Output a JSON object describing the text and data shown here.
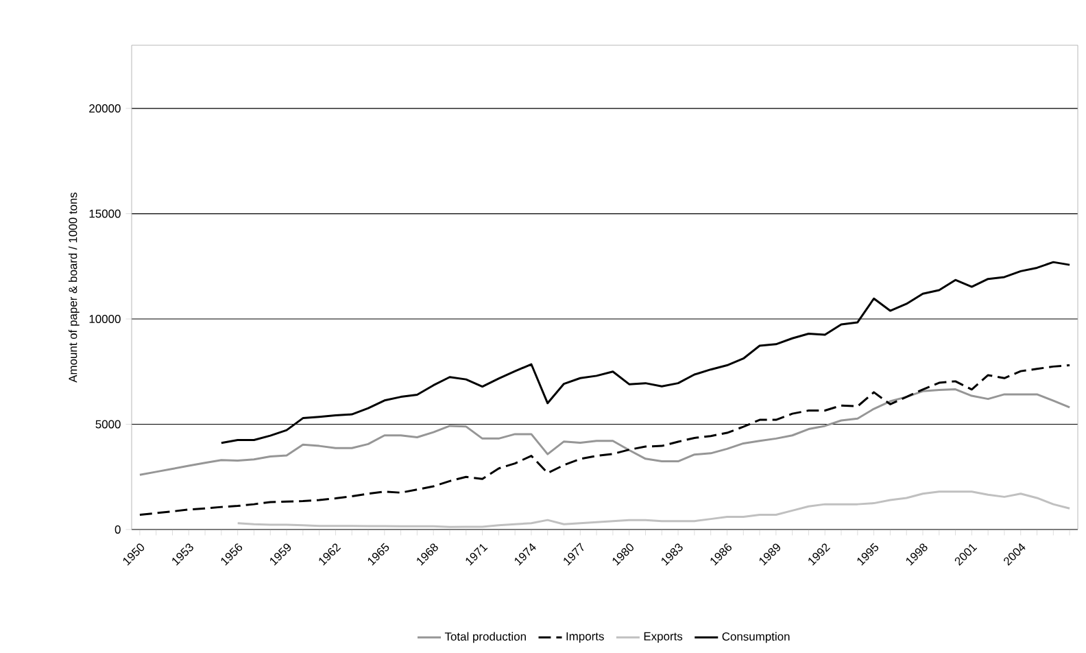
{
  "chart_data": {
    "type": "line",
    "ylabel": "Amount of paper & board / 1000 tons",
    "categories": [
      "1950",
      null,
      null,
      "1953",
      null,
      null,
      "1956",
      null,
      null,
      "1959",
      null,
      null,
      "1962",
      null,
      null,
      "1965",
      null,
      null,
      "1968",
      null,
      null,
      "1971",
      null,
      null,
      "1974",
      null,
      null,
      "1977",
      null,
      null,
      "1980",
      null,
      null,
      "1983",
      null,
      null,
      "1986",
      null,
      null,
      "1989",
      null,
      null,
      "1992",
      null,
      null,
      "1995",
      null,
      null,
      "1998",
      null,
      null,
      "2001",
      null,
      null,
      "2004",
      null,
      null,
      null
    ],
    "series": [
      {
        "name": "Total production",
        "color": "#969696",
        "line_style": "solid",
        "values": [
          2600,
          2740,
          2880,
          3030,
          3170,
          3300,
          3270,
          3330,
          3470,
          3520,
          4030,
          3970,
          3870,
          3870,
          4060,
          4470,
          4470,
          4380,
          4620,
          4920,
          4890,
          4320,
          4320,
          4530,
          4530,
          3580,
          4180,
          4120,
          4210,
          4210,
          3770,
          3360,
          3240,
          3240,
          3560,
          3620,
          3830,
          4090,
          4210,
          4320,
          4470,
          4770,
          4920,
          5180,
          5270,
          5730,
          6090,
          6300,
          6570,
          6630,
          6660,
          6350,
          6200,
          6420,
          6420,
          6420,
          6120,
          5800
        ]
      },
      {
        "name": "Imports",
        "color": "#000000",
        "line_style": "dashed",
        "values": [
          700,
          780,
          860,
          950,
          1000,
          1070,
          1120,
          1200,
          1300,
          1330,
          1350,
          1400,
          1480,
          1580,
          1700,
          1800,
          1750,
          1900,
          2050,
          2300,
          2500,
          2400,
          2900,
          3140,
          3500,
          2680,
          3060,
          3350,
          3500,
          3590,
          3790,
          3940,
          3970,
          4170,
          4350,
          4440,
          4590,
          4880,
          5210,
          5210,
          5500,
          5650,
          5650,
          5890,
          5850,
          6520,
          5950,
          6300,
          6650,
          6970,
          7040,
          6650,
          7330,
          7190,
          7520,
          7630,
          7740,
          7800
        ]
      },
      {
        "name": "Exports",
        "color": "#c0c0c0",
        "line_style": "solid",
        "values": [
          null,
          null,
          null,
          null,
          null,
          null,
          300,
          250,
          230,
          230,
          200,
          170,
          170,
          170,
          160,
          160,
          150,
          150,
          150,
          120,
          130,
          130,
          200,
          250,
          300,
          450,
          250,
          300,
          350,
          400,
          450,
          450,
          400,
          400,
          400,
          500,
          600,
          600,
          700,
          700,
          900,
          1100,
          1200,
          1200,
          1200,
          1250,
          1400,
          1500,
          1700,
          1800,
          1800,
          1800,
          1650,
          1550,
          1700,
          1500,
          1200,
          1000
        ]
      },
      {
        "name": "Consumption",
        "color": "#000000",
        "line_style": "solid",
        "values": [
          null,
          null,
          null,
          null,
          null,
          4110,
          4250,
          4250,
          4460,
          4720,
          5290,
          5350,
          5420,
          5470,
          5760,
          6130,
          6300,
          6400,
          6850,
          7240,
          7130,
          6790,
          7170,
          7520,
          7850,
          6000,
          6920,
          7190,
          7300,
          7500,
          6900,
          6950,
          6800,
          6950,
          7360,
          7600,
          7800,
          8120,
          8730,
          8800,
          9080,
          9300,
          9250,
          9740,
          9840,
          10970,
          10390,
          10720,
          11200,
          11370,
          11850,
          11530,
          11900,
          11990,
          12270,
          12430,
          12700,
          12570
        ]
      }
    ],
    "ylim": [
      0,
      23000
    ],
    "yticks": [
      0,
      5000,
      10000,
      15000,
      20000
    ],
    "grid": "y",
    "legend": "bottom"
  }
}
